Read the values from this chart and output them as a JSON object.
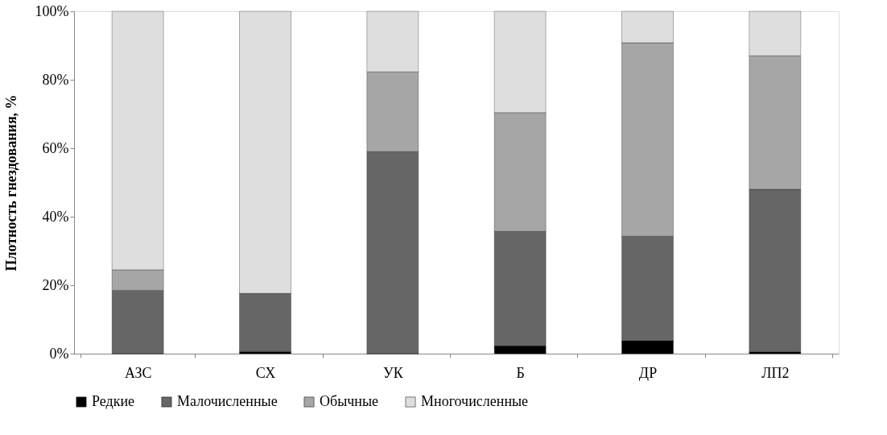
{
  "chart_data": {
    "type": "bar",
    "stacked": true,
    "ylabel": "Плотность гнездования, %",
    "categories": [
      "АЗС",
      "СХ",
      "УК",
      "Б",
      "ДР",
      "ЛП2"
    ],
    "series": [
      {
        "name": "Редкие",
        "color": "#000000",
        "values": [
          0,
          0.6,
          0,
          2.3,
          3.8,
          0.5
        ]
      },
      {
        "name": "Малочисленные",
        "color": "#666666",
        "values": [
          18.5,
          17,
          59,
          33.4,
          30.5,
          47.5
        ]
      },
      {
        "name": "Обычные",
        "color": "#a6a6a6",
        "values": [
          6,
          0,
          23.3,
          34.7,
          56.5,
          39
        ]
      },
      {
        "name": "Многочисленные",
        "color": "#dedede",
        "values": [
          75.5,
          82.4,
          17.7,
          29.6,
          9.2,
          13
        ]
      }
    ],
    "ylim": [
      0,
      100
    ],
    "yticks": [
      {
        "value": 0,
        "label": "0%"
      },
      {
        "value": 20,
        "label": "20%"
      },
      {
        "value": 40,
        "label": "40%"
      },
      {
        "value": 60,
        "label": "60%"
      },
      {
        "value": 80,
        "label": "80%"
      },
      {
        "value": 100,
        "label": "100%"
      }
    ],
    "grid": false,
    "legend": "bottom"
  }
}
